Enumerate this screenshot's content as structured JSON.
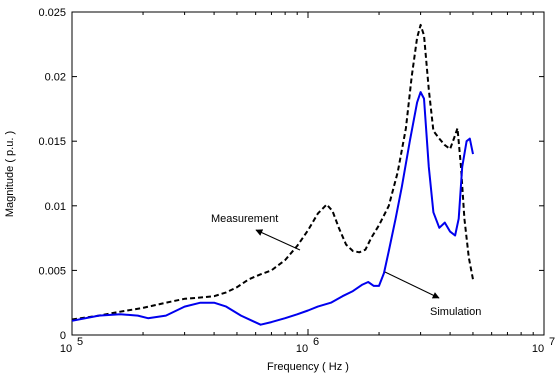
{
  "chart_data": {
    "type": "line",
    "title": "",
    "xlabel": "Frequency ( Hz )",
    "ylabel": "Magnitude ( p.u. )",
    "x_scale": "log",
    "xlim": [
      100000,
      10000000
    ],
    "ylim": [
      0,
      0.025
    ],
    "x_ticks": [
      {
        "base": "10",
        "exp": "5"
      },
      {
        "base": "10",
        "exp": "6"
      },
      {
        "base": "10",
        "exp": "7"
      }
    ],
    "y_ticks": [
      "0",
      "0.005",
      "0.01",
      "0.015",
      "0.02",
      "0.025"
    ],
    "y_tick_values": [
      0,
      0.005,
      0.01,
      0.015,
      0.02,
      0.025
    ],
    "grid": false,
    "series": [
      {
        "name": "Measurement",
        "color": "#000000",
        "style": "dashed",
        "points": [
          [
            100000,
            0.0012
          ],
          [
            130000,
            0.0015
          ],
          [
            160000,
            0.0018
          ],
          [
            200000,
            0.0021
          ],
          [
            250000,
            0.0025
          ],
          [
            300000,
            0.0028
          ],
          [
            350000,
            0.0029
          ],
          [
            400000,
            0.003
          ],
          [
            450000,
            0.0033
          ],
          [
            500000,
            0.0037
          ],
          [
            560000,
            0.0043
          ],
          [
            630000,
            0.0047
          ],
          [
            700000,
            0.005
          ],
          [
            800000,
            0.0058
          ],
          [
            900000,
            0.0069
          ],
          [
            1000000,
            0.0081
          ],
          [
            1100000,
            0.0094
          ],
          [
            1200000,
            0.0101
          ],
          [
            1270000,
            0.0096
          ],
          [
            1350000,
            0.0083
          ],
          [
            1450000,
            0.007
          ],
          [
            1550000,
            0.0065
          ],
          [
            1650000,
            0.0064
          ],
          [
            1750000,
            0.0066
          ],
          [
            1850000,
            0.0075
          ],
          [
            2000000,
            0.0085
          ],
          [
            2200000,
            0.01
          ],
          [
            2400000,
            0.0126
          ],
          [
            2600000,
            0.016
          ],
          [
            2750000,
            0.02
          ],
          [
            2900000,
            0.023
          ],
          [
            3000000,
            0.024
          ],
          [
            3100000,
            0.0232
          ],
          [
            3250000,
            0.019
          ],
          [
            3400000,
            0.0158
          ],
          [
            3600000,
            0.0152
          ],
          [
            3800000,
            0.0147
          ],
          [
            4000000,
            0.0144
          ],
          [
            4150000,
            0.0152
          ],
          [
            4300000,
            0.016
          ],
          [
            4450000,
            0.013
          ],
          [
            4600000,
            0.009
          ],
          [
            4800000,
            0.006
          ],
          [
            5000000,
            0.0043
          ]
        ]
      },
      {
        "name": "Simulation",
        "color": "#0000ee",
        "style": "solid",
        "points": [
          [
            100000,
            0.0011
          ],
          [
            130000,
            0.0015
          ],
          [
            160000,
            0.0016
          ],
          [
            190000,
            0.0015
          ],
          [
            210000,
            0.0013
          ],
          [
            250000,
            0.0015
          ],
          [
            300000,
            0.0022
          ],
          [
            350000,
            0.0025
          ],
          [
            400000,
            0.0025
          ],
          [
            450000,
            0.0022
          ],
          [
            520000,
            0.0015
          ],
          [
            580000,
            0.0011
          ],
          [
            630000,
            0.0008
          ],
          [
            700000,
            0.001
          ],
          [
            800000,
            0.0013
          ],
          [
            900000,
            0.0016
          ],
          [
            1000000,
            0.0019
          ],
          [
            1100000,
            0.0022
          ],
          [
            1250000,
            0.0025
          ],
          [
            1400000,
            0.003
          ],
          [
            1550000,
            0.0034
          ],
          [
            1700000,
            0.0039
          ],
          [
            1800000,
            0.0041
          ],
          [
            1900000,
            0.0038
          ],
          [
            2000000,
            0.0038
          ],
          [
            2100000,
            0.0048
          ],
          [
            2200000,
            0.0065
          ],
          [
            2350000,
            0.009
          ],
          [
            2500000,
            0.0115
          ],
          [
            2700000,
            0.015
          ],
          [
            2900000,
            0.018
          ],
          [
            3000000,
            0.0188
          ],
          [
            3100000,
            0.0183
          ],
          [
            3250000,
            0.013
          ],
          [
            3400000,
            0.0095
          ],
          [
            3600000,
            0.0083
          ],
          [
            3800000,
            0.0087
          ],
          [
            4000000,
            0.008
          ],
          [
            4200000,
            0.0077
          ],
          [
            4350000,
            0.009
          ],
          [
            4500000,
            0.013
          ],
          [
            4700000,
            0.015
          ],
          [
            4850000,
            0.0152
          ],
          [
            5000000,
            0.014
          ]
        ]
      }
    ],
    "annotations": [
      {
        "text": "Measurement",
        "points_to": "Measurement"
      },
      {
        "text": "Simulation",
        "points_to": "Simulation"
      }
    ]
  }
}
